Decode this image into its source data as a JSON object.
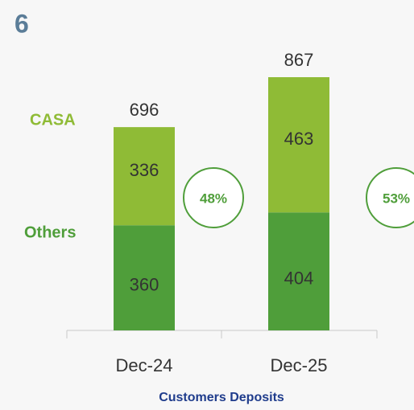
{
  "page_number": "6",
  "chart_data": {
    "type": "stacked_bar",
    "title": "Customers Deposits",
    "categories": [
      "Dec-24",
      "Dec-25"
    ],
    "series": [
      {
        "name": "Others",
        "color": "#4f9e3a",
        "values": [
          360,
          404
        ]
      },
      {
        "name": "CASA",
        "color": "#8fbb36",
        "values": [
          336,
          463
        ]
      }
    ],
    "totals": [
      696,
      867
    ],
    "casa_share": {
      "values": [
        48,
        53
      ],
      "value_labels": [
        "48%",
        "53%"
      ]
    }
  }
}
